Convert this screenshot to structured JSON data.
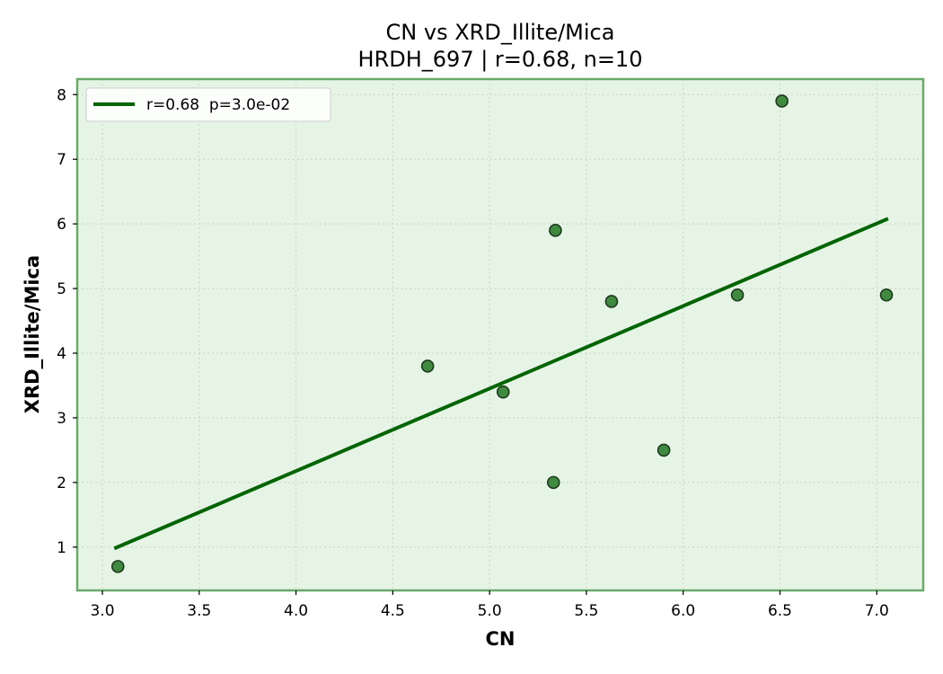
{
  "chart_data": {
    "type": "scatter",
    "title": "CN vs XRD_Illite/Mica",
    "subtitle": "HRDH_697 | r=0.68, n=10",
    "xlabel": "CN",
    "ylabel": "XRD_Illite/Mica",
    "xlim": [
      2.87,
      7.24
    ],
    "ylim": [
      0.33,
      8.24
    ],
    "xticks": [
      3.0,
      3.5,
      4.0,
      4.5,
      5.0,
      5.5,
      6.0,
      6.5,
      7.0
    ],
    "xtick_labels": [
      "3.0",
      "3.5",
      "4.0",
      "4.5",
      "5.0",
      "5.5",
      "6.0",
      "6.5",
      "7.0"
    ],
    "yticks": [
      1,
      2,
      3,
      4,
      5,
      6,
      7,
      8
    ],
    "ytick_labels": [
      "1",
      "2",
      "3",
      "4",
      "5",
      "6",
      "7",
      "8"
    ],
    "grid": true,
    "legend_position": "top-left",
    "points": [
      {
        "x": 3.08,
        "y": 0.7
      },
      {
        "x": 4.68,
        "y": 3.8
      },
      {
        "x": 5.07,
        "y": 3.4
      },
      {
        "x": 5.33,
        "y": 2.0
      },
      {
        "x": 5.34,
        "y": 5.9
      },
      {
        "x": 5.63,
        "y": 4.8
      },
      {
        "x": 5.9,
        "y": 2.5
      },
      {
        "x": 6.28,
        "y": 4.9
      },
      {
        "x": 6.51,
        "y": 7.9
      },
      {
        "x": 7.05,
        "y": 4.9
      }
    ],
    "fit_line": {
      "label": "r=0.68  p=3.0e-02",
      "x": [
        3.07,
        7.05
      ],
      "y": [
        0.99,
        6.07
      ]
    },
    "colors": {
      "plot_background": "#e6f4e6",
      "frame": "#6aaa6a",
      "point_fill": "#3f8a3f",
      "point_edge": "#1e3a1e",
      "fit_line": "#006400",
      "grid": "#c8d4c8"
    }
  }
}
